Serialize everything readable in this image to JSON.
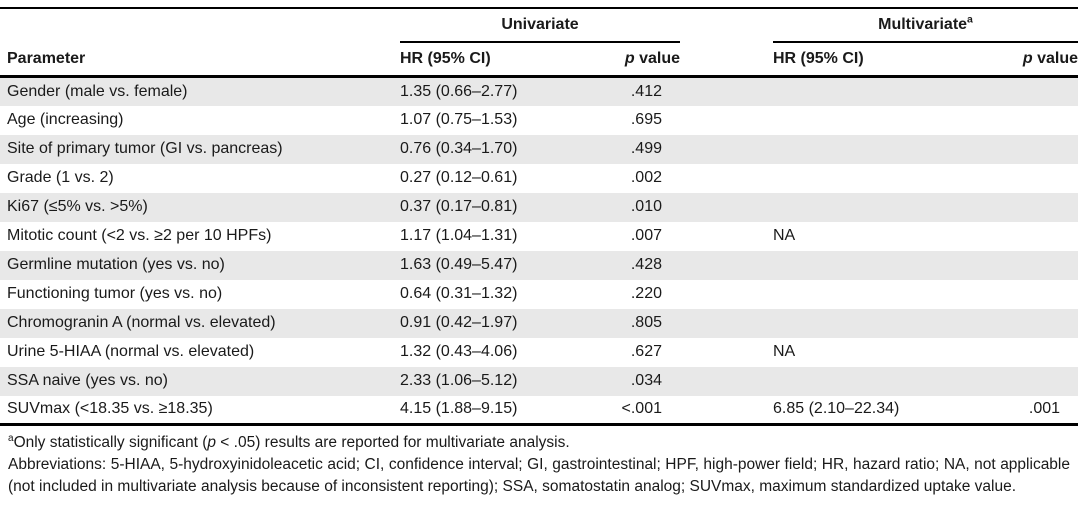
{
  "table": {
    "group_headers": {
      "univariate": {
        "label": "Univariate",
        "sup": ""
      },
      "multivariate": {
        "label": "Multivariate",
        "sup": "a"
      }
    },
    "column_headers": {
      "parameter": "Parameter",
      "hr_ci": "HR (95% CI)",
      "p_italic": "p",
      "p_rest": " value"
    },
    "rows": [
      {
        "param": "Gender (male vs. female)",
        "uni_hr": "1.35 (0.66–2.77)",
        "uni_p": ".412",
        "mul_hr": "",
        "mul_p": ""
      },
      {
        "param": "Age (increasing)",
        "uni_hr": "1.07 (0.75–1.53)",
        "uni_p": ".695",
        "mul_hr": "",
        "mul_p": ""
      },
      {
        "param": "Site of primary tumor (GI vs. pancreas)",
        "uni_hr": "0.76 (0.34–1.70)",
        "uni_p": ".499",
        "mul_hr": "",
        "mul_p": ""
      },
      {
        "param": "Grade (1 vs. 2)",
        "uni_hr": "0.27 (0.12–0.61)",
        "uni_p": ".002",
        "mul_hr": "",
        "mul_p": ""
      },
      {
        "param": "Ki67 (≤5% vs. >5%)",
        "uni_hr": "0.37 (0.17–0.81)",
        "uni_p": ".010",
        "mul_hr": "",
        "mul_p": ""
      },
      {
        "param": "Mitotic count (<2 vs. ≥2 per 10 HPFs)",
        "uni_hr": "1.17 (1.04–1.31)",
        "uni_p": ".007",
        "mul_hr": "NA",
        "mul_p": ""
      },
      {
        "param": "Germline mutation (yes vs. no)",
        "uni_hr": "1.63 (0.49–5.47)",
        "uni_p": ".428",
        "mul_hr": "",
        "mul_p": ""
      },
      {
        "param": "Functioning tumor (yes vs. no)",
        "uni_hr": "0.64 (0.31–1.32)",
        "uni_p": ".220",
        "mul_hr": "",
        "mul_p": ""
      },
      {
        "param": "Chromogranin A (normal vs. elevated)",
        "uni_hr": "0.91 (0.42–1.97)",
        "uni_p": ".805",
        "mul_hr": "",
        "mul_p": ""
      },
      {
        "param": "Urine 5-HIAA (normal vs. elevated)",
        "uni_hr": "1.32 (0.43–4.06)",
        "uni_p": ".627",
        "mul_hr": "NA",
        "mul_p": ""
      },
      {
        "param": "SSA naive (yes vs. no)",
        "uni_hr": "2.33 (1.06–5.12)",
        "uni_p": ".034",
        "mul_hr": "",
        "mul_p": ""
      },
      {
        "param": "SUVmax (<18.35 vs. ≥18.35)",
        "uni_hr": "4.15 (1.88–9.15)",
        "uni_p": "<.001",
        "mul_hr": "6.85 (2.10–22.34)",
        "mul_p": ".001"
      }
    ]
  },
  "footnotes": {
    "note_a": {
      "sup": "a",
      "pre": "Only statistically significant (",
      "italic": "p",
      "post": " < .05) results are reported for multivariate analysis."
    },
    "abbreviations": "Abbreviations: 5-HIAA, 5-hydroxyinidoleacetic acid; CI, confidence interval; GI, gastrointestinal; HPF, high-power field; HR, hazard ratio; NA, not applicable (not included in multivariate analysis because of inconsistent reporting); SSA, somatostatin analog; SUVmax, maximum standardized uptake value."
  },
  "colors": {
    "stripe": "#e8e8e8",
    "rule": "#000000",
    "text": "#1a1a1a"
  }
}
